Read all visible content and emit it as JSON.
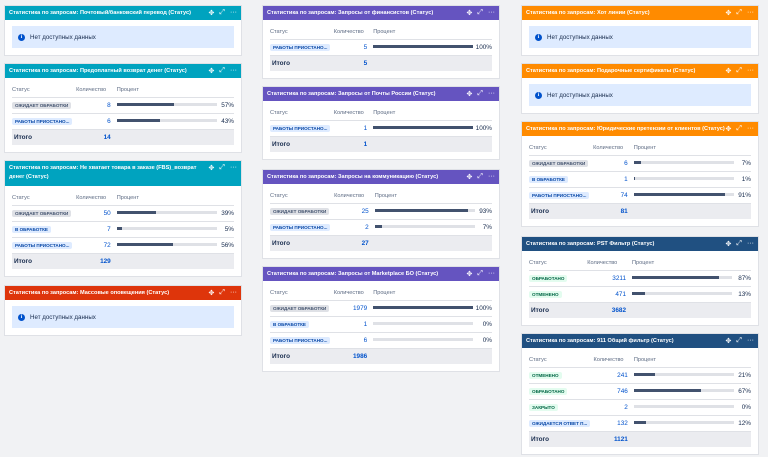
{
  "columns": {
    "status": "Статус",
    "count": "Количество",
    "percent": "Процент"
  },
  "total_label": "Итого",
  "no_data": "Нет доступных данных",
  "info_glyph": "i",
  "icons": {
    "move": "✥",
    "expand": "⤢",
    "more": "···"
  },
  "gadgets": [
    {
      "title": "Статистика по запросам: Почтовый/банковский перевод (Статус)",
      "color": "#00a3bf",
      "empty": true
    },
    {
      "title": "Статистика по запросам: Предоплатный возврат денег (Статус)",
      "color": "#00a3bf",
      "rows": [
        {
          "status": "ОЖИДАЕТ ОБРАБОТКИ",
          "style": "grey",
          "count": "8",
          "fraction": 0.57,
          "percent": "57%"
        },
        {
          "status": "РАБОТЫ ПРИОСТАНО...",
          "style": "blue",
          "count": "6",
          "fraction": 0.43,
          "percent": "43%"
        }
      ],
      "total": "14"
    },
    {
      "title": "Статистика по запросам: Не хватает товара в заказе (FBS)_возврат денег (Статус)",
      "color": "#00a3bf",
      "rows": [
        {
          "status": "ОЖИДАЕТ ОБРАБОТКИ",
          "style": "grey",
          "count": "50",
          "fraction": 0.39,
          "percent": "39%"
        },
        {
          "status": "В ОБРАБОТКЕ",
          "style": "blue",
          "count": "7",
          "fraction": 0.05,
          "percent": "5%"
        },
        {
          "status": "РАБОТЫ ПРИОСТАНО...",
          "style": "blue",
          "count": "72",
          "fraction": 0.56,
          "percent": "56%"
        }
      ],
      "total": "129"
    },
    {
      "title": "Статистика по запросам: Массовые оповещения (Статус)",
      "color": "#de350b",
      "empty": true
    },
    {
      "title": "Статистика по запросам: Запросы от финансистов (Статус)",
      "color": "#6554c0",
      "rows": [
        {
          "status": "РАБОТЫ ПРИОСТАНО...",
          "style": "blue",
          "count": "5",
          "fraction": 1.0,
          "percent": "100%"
        }
      ],
      "total": "5"
    },
    {
      "title": "Статистика по запросам: Запросы от Почты России (Статус)",
      "color": "#6554c0",
      "rows": [
        {
          "status": "РАБОТЫ ПРИОСТАНО...",
          "style": "blue",
          "count": "1",
          "fraction": 1.0,
          "percent": "100%"
        }
      ],
      "total": "1"
    },
    {
      "title": "Статистика по запросам: Запросы на коммуникацию (Статус)",
      "color": "#6554c0",
      "rows": [
        {
          "status": "ОЖИДАЕТ ОБРАБОТКИ",
          "style": "grey",
          "count": "25",
          "fraction": 0.93,
          "percent": "93%"
        },
        {
          "status": "РАБОТЫ ПРИОСТАНО...",
          "style": "blue",
          "count": "2",
          "fraction": 0.07,
          "percent": "7%"
        }
      ],
      "total": "27"
    },
    {
      "title": "Статистика по запросам: Запросы от Marketplace БО (Статус)",
      "color": "#6554c0",
      "rows": [
        {
          "status": "ОЖИДАЕТ ОБРАБОТКИ",
          "style": "grey",
          "count": "1979",
          "fraction": 1.0,
          "percent": "100%"
        },
        {
          "status": "В ОБРАБОТКЕ",
          "style": "blue",
          "count": "1",
          "fraction": 0.0,
          "percent": "0%"
        },
        {
          "status": "РАБОТЫ ПРИОСТАНО...",
          "style": "blue",
          "count": "6",
          "fraction": 0.0,
          "percent": "0%"
        }
      ],
      "total": "1986"
    },
    {
      "title": "Статистика по запросам: Хот линии (Статус)",
      "color": "#ff8b00",
      "empty": true
    },
    {
      "title": "Статистика по запросам: Подарочные сертификаты (Статус)",
      "color": "#ff8b00",
      "empty": true
    },
    {
      "title": "Статистика по запросам: Юридические претензии от клиентов (Статус)",
      "color": "#ff8b00",
      "rows": [
        {
          "status": "ОЖИДАЕТ ОБРАБОТКИ",
          "style": "grey",
          "count": "6",
          "fraction": 0.07,
          "percent": "7%"
        },
        {
          "status": "В ОБРАБОТКЕ",
          "style": "blue",
          "count": "1",
          "fraction": 0.01,
          "percent": "1%"
        },
        {
          "status": "РАБОТЫ ПРИОСТАНО...",
          "style": "blue",
          "count": "74",
          "fraction": 0.91,
          "percent": "91%"
        }
      ],
      "total": "81"
    },
    {
      "title": "Статистика по запросам: PST Фильтр (Статус)",
      "color": "#205081",
      "rows": [
        {
          "status": "ОБРАБОТАНО",
          "style": "green",
          "count": "3211",
          "fraction": 0.87,
          "percent": "87%"
        },
        {
          "status": "ОТМЕНЕНО",
          "style": "green",
          "count": "471",
          "fraction": 0.13,
          "percent": "13%"
        }
      ],
      "total": "3682"
    },
    {
      "title": "Статистика по запросам: 911 Общий фильтр (Статус)",
      "color": "#205081",
      "rows": [
        {
          "status": "ОТМЕНЕНО",
          "style": "green",
          "count": "241",
          "fraction": 0.21,
          "percent": "21%"
        },
        {
          "status": "ОБРАБОТАНО",
          "style": "green",
          "count": "746",
          "fraction": 0.67,
          "percent": "67%"
        },
        {
          "status": "ЗАКРЫТО",
          "style": "green",
          "count": "2",
          "fraction": 0.0,
          "percent": "0%"
        },
        {
          "status": "ОЖИДАЕТСЯ ОТВЕТ П...",
          "style": "blue",
          "count": "132",
          "fraction": 0.12,
          "percent": "12%"
        }
      ],
      "total": "1121"
    }
  ]
}
